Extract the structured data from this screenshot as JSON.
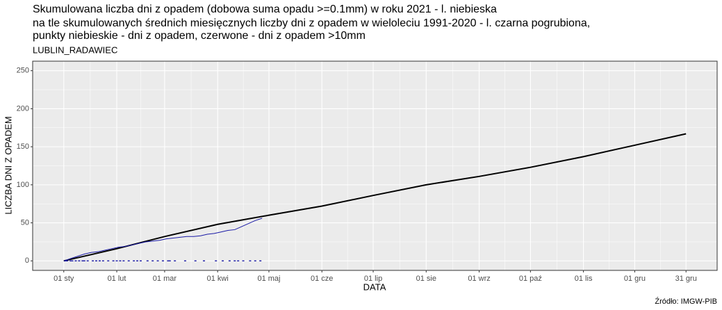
{
  "chart_data": {
    "type": "line",
    "title": [
      "Skumulowana liczba dni z opadem (dobowa suma opadu >=0.1mm) w roku 2021 - l. niebieska",
      "na tle skumulowanych średnich miesięcznych liczby dni z opadem w wieloleciu 1991-2020 - l. czarna pogrubiona,",
      "punkty niebieskie - dni z opadem, czerwone - dni z opadem >10mm"
    ],
    "subtitle": "LUBLIN_RADAWIEC",
    "x_label": "DATA",
    "y_label": "LICZBA DNI Z OPADEM",
    "caption": "Źródło: IMGW-PIB",
    "xlim": [
      -17.2,
      383.2
    ],
    "ylim": [
      -12.5,
      262.5
    ],
    "xticks": [
      {
        "value": 1,
        "label": "01 sty"
      },
      {
        "value": 32,
        "label": "01 lut"
      },
      {
        "value": 60,
        "label": "01 mar"
      },
      {
        "value": 91,
        "label": "01 kwi"
      },
      {
        "value": 121,
        "label": "01 maj"
      },
      {
        "value": 152,
        "label": "01 cze"
      },
      {
        "value": 182,
        "label": "01 lip"
      },
      {
        "value": 213,
        "label": "01 sie"
      },
      {
        "value": 244,
        "label": "01 wrz"
      },
      {
        "value": 274,
        "label": "01 paź"
      },
      {
        "value": 305,
        "label": "01 lis"
      },
      {
        "value": 335,
        "label": "01 gru"
      },
      {
        "value": 365,
        "label": "31 gru"
      }
    ],
    "yticks": [
      0,
      50,
      100,
      150,
      200,
      250
    ],
    "grid": true,
    "series": [
      {
        "type": "line",
        "color": "#000000",
        "width": 2,
        "x": [
          1,
          32,
          60,
          91,
          121,
          152,
          182,
          213,
          244,
          274,
          305,
          335,
          365
        ],
        "values": [
          0,
          16,
          32,
          48,
          60,
          72,
          86,
          100,
          111,
          123,
          137,
          152,
          167
        ]
      },
      {
        "type": "line",
        "color": "#1a1aa6",
        "width": 1,
        "x": [
          1,
          5,
          9,
          13,
          17,
          21,
          25,
          29,
          33,
          37,
          41,
          45,
          49,
          53,
          57,
          61,
          65,
          69,
          73,
          77,
          81,
          85,
          89,
          93,
          97,
          101,
          105,
          109,
          113,
          117
        ],
        "values": [
          0,
          3,
          6,
          9,
          11,
          12,
          14,
          16,
          18,
          19,
          21,
          23,
          25,
          26,
          27,
          29,
          30,
          31,
          32,
          32,
          33,
          35,
          36,
          38,
          40,
          41,
          45,
          49,
          53,
          56
        ]
      },
      {
        "type": "scatter",
        "color": "#1a1aa6",
        "x": [
          2,
          3,
          5,
          6,
          8,
          10,
          12,
          13,
          15,
          18,
          20,
          22,
          24,
          27,
          30,
          32,
          34,
          36,
          39,
          42,
          44,
          46,
          50,
          53,
          56,
          59,
          62,
          63,
          66,
          72,
          78,
          83,
          90,
          94,
          98,
          101,
          103,
          106,
          110,
          113,
          116
        ],
        "values": [
          0,
          0,
          0,
          0,
          0,
          0,
          0,
          0,
          0,
          0,
          0,
          0,
          0,
          0,
          0,
          0,
          0,
          0,
          0,
          0,
          0,
          0,
          0,
          0,
          0,
          0,
          0,
          0,
          0,
          0,
          0,
          0,
          0,
          0,
          0,
          0,
          0,
          0,
          0,
          0,
          0
        ]
      }
    ]
  }
}
